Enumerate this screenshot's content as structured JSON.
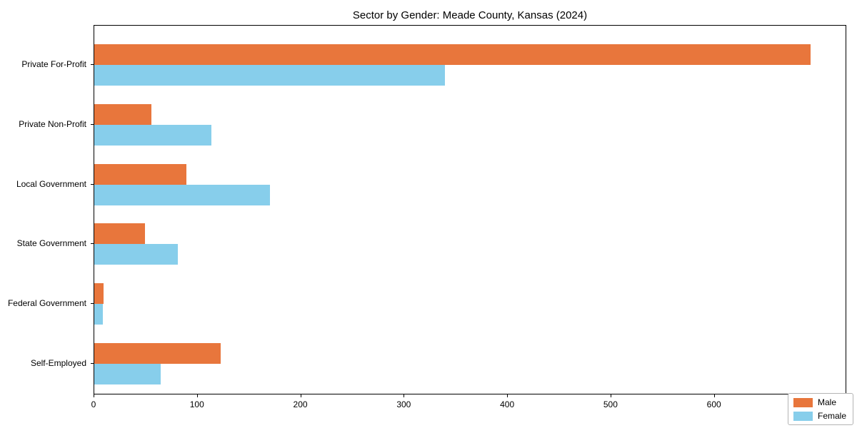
{
  "chart_data": {
    "type": "bar",
    "orientation": "horizontal",
    "title": "Sector by Gender: Meade County, Kansas (2024)",
    "categories": [
      "Private For-Profit",
      "Private Non-Profit",
      "Local Government",
      "State Government",
      "Federal Government",
      "Self-Employed"
    ],
    "series": [
      {
        "name": "Male",
        "color": "#e8763c",
        "values": [
          693,
          55,
          89,
          49,
          9,
          122
        ]
      },
      {
        "name": "Female",
        "color": "#87ceeb",
        "values": [
          339,
          113,
          170,
          81,
          8,
          64
        ]
      }
    ],
    "xlabel": "",
    "ylabel": "",
    "xlim": [
      0,
      728
    ],
    "xticks": [
      0,
      100,
      200,
      300,
      400,
      500,
      600,
      700
    ],
    "grid": false,
    "legend_position": "lower right",
    "axis_color": "#000000",
    "background_color": "#ffffff"
  }
}
